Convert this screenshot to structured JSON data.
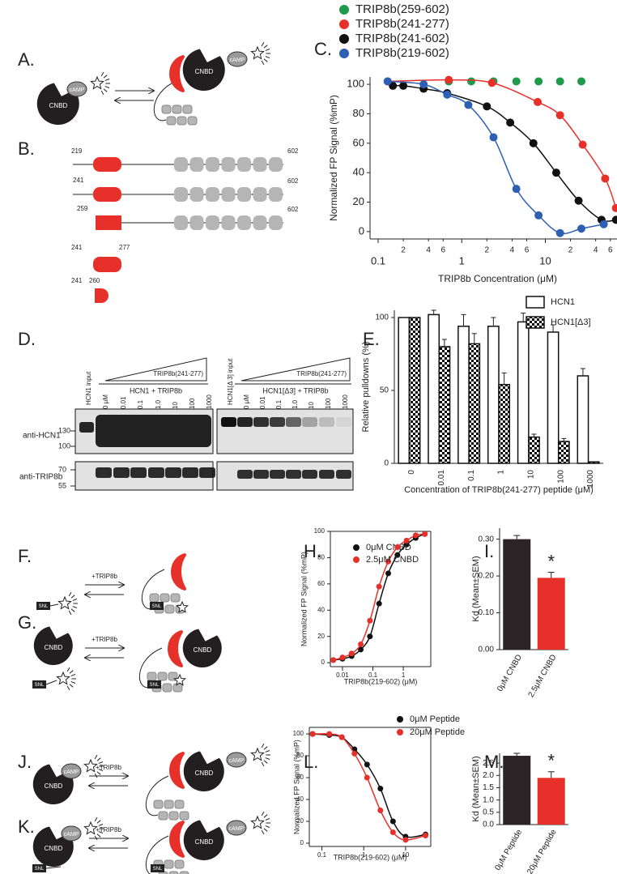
{
  "panel_labels": [
    "A.",
    "B.",
    "C.",
    "D.",
    "E.",
    "F.",
    "G.",
    "H.",
    "I.",
    "J.",
    "K.",
    "L.",
    "M."
  ],
  "diagram": {
    "cnbd": "CNBD",
    "camp": "cAMP",
    "snl": "SNL",
    "plus_trip8b": "+TRIP8b",
    "constructs": [
      {
        "start": "219",
        "end": "602"
      },
      {
        "start": "241",
        "end": "602"
      },
      {
        "start": "259",
        "end": "602"
      },
      {
        "start": "241",
        "end": "277"
      },
      {
        "start": "241",
        "end": "260"
      }
    ]
  },
  "gel": {
    "peptide": "TRIP8b(241-277)",
    "left": {
      "input": "HCN1 input",
      "group": "HCN1 + TRIP8b"
    },
    "right": {
      "input": "HCN1[Δ 3] input",
      "group": "HCN1[Δ3] + TRIP8b"
    },
    "lanes": [
      "0 μM",
      "0.01",
      "0.1",
      "1.0",
      "10",
      "100",
      "1000"
    ],
    "blots": [
      "anti-HCN1",
      "anti-TRIP8b"
    ],
    "markers": [
      "130",
      "100",
      "70",
      "55"
    ]
  },
  "chart_data": [
    {
      "type": "scatter",
      "xlabel": "TRIP8b Concentration (μM)",
      "ylabel": "Normalized FP Signal (%mP)",
      "xlog": true,
      "xlim": [
        0.08,
        90
      ],
      "ylim": [
        -5,
        105
      ],
      "fit": true,
      "legend": "top",
      "xticks": [
        0.1,
        {
          "value": 0.2,
          "label": "2"
        },
        {
          "value": 0.4,
          "label": "4"
        },
        {
          "value": 0.6,
          "label": "6"
        },
        1,
        {
          "value": 2,
          "label": "2"
        },
        {
          "value": 4,
          "label": "4"
        },
        {
          "value": 6,
          "label": "6"
        },
        10,
        {
          "value": 20,
          "label": "2"
        },
        {
          "value": 40,
          "label": "4"
        },
        {
          "value": 60,
          "label": "6"
        }
      ],
      "yticks": [
        0,
        20,
        40,
        60,
        80,
        100
      ],
      "series": [
        {
          "name": "TRIP8b(259-602)",
          "color": "#1f9a4a",
          "fit": false,
          "x": [
            0.7,
            1.3,
            2.4,
            4.5,
            8.3,
            15,
            27
          ],
          "values": [
            102,
            102,
            102,
            102,
            102,
            102,
            102
          ]
        },
        {
          "name": "TRIP8b(241-277)",
          "color": "#e8302a",
          "x": [
            0.13,
            0.7,
            2.3,
            8.1,
            15,
            28,
            52,
            70
          ],
          "values": [
            102,
            103,
            101,
            88,
            79,
            59,
            36,
            16
          ]
        },
        {
          "name": "TRIP8b(241-602)",
          "color": "#111111",
          "x": [
            0.15,
            0.2,
            0.35,
            0.67,
            2.0,
            3.8,
            7.2,
            13.5,
            25,
            47,
            70
          ],
          "values": [
            99,
            99,
            97,
            94,
            85,
            74,
            60,
            40,
            21,
            8,
            8
          ]
        },
        {
          "name": "TRIP8b(219-602)",
          "color": "#2d5fb3",
          "x": [
            0.13,
            0.35,
            0.67,
            1.2,
            2.4,
            4.5,
            8.3,
            15,
            27,
            50
          ],
          "values": [
            102,
            100,
            93,
            86,
            64,
            29,
            11,
            -1,
            2,
            5
          ]
        }
      ]
    },
    {
      "type": "bar",
      "xlabel": "Concentration of TRIP8b(241-277) peptide (μM)",
      "ylabel": "Relative pulldowns (%)",
      "categories": [
        "0",
        "0.01",
        "0.1",
        "1",
        "10",
        "100",
        "1000"
      ],
      "ylim": [
        0,
        105
      ],
      "yticks": [
        0,
        50,
        100
      ],
      "legend": "top-right",
      "series": [
        {
          "name": "HCN1",
          "color": "#ffffff",
          "pattern": "none",
          "values": [
            100,
            102,
            94,
            94,
            97,
            90,
            60
          ],
          "errors": [
            0,
            3,
            8,
            6,
            6,
            5,
            5
          ]
        },
        {
          "name": "HCN1[Δ3]",
          "color": "#000000",
          "pattern": "checker",
          "values": [
            100,
            80,
            82,
            54,
            18,
            15,
            1
          ],
          "errors": [
            0,
            5,
            7,
            8,
            2,
            2,
            0
          ]
        }
      ]
    },
    {
      "type": "scatter",
      "xlabel": "TRIP8b(219-602) (μM)",
      "ylabel": "Normalized FP Signal (%mP)",
      "xlog": true,
      "xlim": [
        0.004,
        8
      ],
      "ylim": [
        -3,
        100
      ],
      "fit": true,
      "frame": true,
      "legend": "top",
      "xticks": [
        0.01,
        0.1,
        1
      ],
      "yticks": [
        0,
        20,
        40,
        60,
        80,
        100
      ],
      "series": [
        {
          "name": "0μM CNBD",
          "color": "#111111",
          "x": [
            0.005,
            0.01,
            0.02,
            0.04,
            0.08,
            0.16,
            0.32,
            0.64,
            1.28,
            2.56,
            5.12
          ],
          "values": [
            2,
            3,
            5,
            10,
            20,
            45,
            68,
            82,
            90,
            95,
            98
          ]
        },
        {
          "name": "2.5μM CNBD",
          "color": "#e8302a",
          "x": [
            0.005,
            0.01,
            0.02,
            0.04,
            0.08,
            0.16,
            0.32,
            0.64,
            1.28,
            2.56,
            5.12
          ],
          "values": [
            2,
            4,
            7,
            14,
            32,
            58,
            77,
            88,
            93,
            97,
            98
          ]
        }
      ]
    },
    {
      "type": "bar",
      "ylabel": "Kd (Mean±SEM)",
      "categories": [
        "0μM CNBD",
        "2.5μM CNBD"
      ],
      "values": [
        0.3,
        0.195
      ],
      "errors": [
        0.01,
        0.015
      ],
      "colors": [
        "#2b2325",
        "#e8302a"
      ],
      "annotation": "*",
      "ylim": [
        0,
        0.33
      ],
      "yticks": [
        {
          "value": 0,
          "label": "0.00"
        },
        {
          "value": 0.1,
          "label": "0.10"
        },
        {
          "value": 0.2,
          "label": "0.20"
        },
        {
          "value": 0.3,
          "label": "0.30"
        }
      ]
    },
    {
      "type": "scatter",
      "xlabel": "TRIP8b(219-602) (μM)",
      "ylabel": "Normalized FP Signal (%mP)",
      "xlog": true,
      "xlim": [
        0.05,
        40
      ],
      "ylim": [
        -3,
        106
      ],
      "fit": true,
      "frame": true,
      "legend": "top-right",
      "xticks": [
        0.1,
        1,
        10
      ],
      "yticks": [
        0,
        20,
        40,
        60,
        80,
        100
      ],
      "series": [
        {
          "name": "0μM Peptide",
          "color": "#111111",
          "x": [
            0.06,
            0.15,
            0.3,
            0.6,
            1.2,
            2.5,
            5,
            10,
            30
          ],
          "values": [
            100,
            99,
            97,
            86,
            72,
            50,
            20,
            6,
            8
          ]
        },
        {
          "name": "20μM Peptide",
          "color": "#e8302a",
          "x": [
            0.06,
            0.15,
            0.3,
            0.6,
            1.2,
            2.5,
            5,
            10,
            30
          ],
          "values": [
            100,
            100,
            97,
            82,
            60,
            30,
            10,
            3,
            7
          ]
        }
      ]
    },
    {
      "type": "bar",
      "ylabel": "Kd (Mean±SEM)",
      "categories": [
        "0μM Peptide",
        "20μM Peptide"
      ],
      "values": [
        2.8,
        1.9
      ],
      "errors": [
        0.1,
        0.25
      ],
      "colors": [
        "#2b2325",
        "#e8302a"
      ],
      "annotation": "*",
      "ylim": [
        0,
        2.9
      ],
      "yticks": [
        {
          "value": 0,
          "label": "0.0"
        },
        0.5,
        {
          "value": 1,
          "label": "1.0"
        },
        1.5,
        {
          "value": 2,
          "label": "2.0"
        },
        2.5
      ]
    }
  ]
}
